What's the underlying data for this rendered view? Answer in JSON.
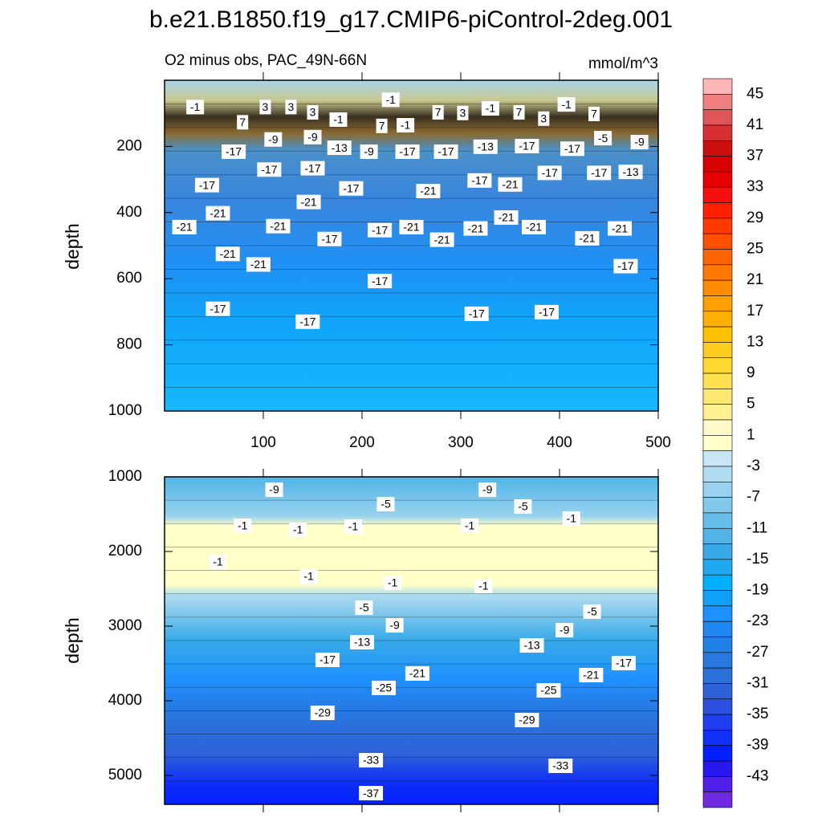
{
  "chart_data": [
    {
      "type": "contour",
      "title": "b.e21.B1850.f19_g17.CMIP6-piControl-2deg.001",
      "subtitle": "O2 minus obs, PAC_49N-66N",
      "units": "mmol/m^3",
      "ylabel": "depth",
      "xlim": [
        0,
        500
      ],
      "xticks": [
        100,
        200,
        300,
        400,
        500
      ],
      "xtick_labels": true,
      "ylim": [
        0,
        1000
      ],
      "yticks": [
        200,
        400,
        600,
        800,
        1000
      ],
      "y_reversed": true,
      "contour_labels": [
        {
          "value": -1,
          "x": 31,
          "y": 81
        },
        {
          "value": 3,
          "x": 102,
          "y": 81
        },
        {
          "value": 3,
          "x": 128,
          "y": 81
        },
        {
          "value": 3,
          "x": 150,
          "y": 97
        },
        {
          "value": 7,
          "x": 79,
          "y": 127
        },
        {
          "value": -1,
          "x": 229,
          "y": 59
        },
        {
          "value": -1,
          "x": 176,
          "y": 119
        },
        {
          "value": 7,
          "x": 220,
          "y": 138
        },
        {
          "value": -1,
          "x": 244,
          "y": 136
        },
        {
          "value": 7,
          "x": 277,
          "y": 97
        },
        {
          "value": 3,
          "x": 302,
          "y": 99
        },
        {
          "value": -1,
          "x": 330,
          "y": 85
        },
        {
          "value": 7,
          "x": 359,
          "y": 97
        },
        {
          "value": 3,
          "x": 384,
          "y": 116
        },
        {
          "value": -1,
          "x": 407,
          "y": 73
        },
        {
          "value": 7,
          "x": 435,
          "y": 102
        },
        {
          "value": -9,
          "x": 110,
          "y": 179
        },
        {
          "value": -9,
          "x": 150,
          "y": 172
        },
        {
          "value": -13,
          "x": 177,
          "y": 204
        },
        {
          "value": -9,
          "x": 207,
          "y": 216
        },
        {
          "value": -17,
          "x": 70,
          "y": 216
        },
        {
          "value": -17,
          "x": 246,
          "y": 216
        },
        {
          "value": -17,
          "x": 285,
          "y": 216
        },
        {
          "value": -13,
          "x": 325,
          "y": 201
        },
        {
          "value": -17,
          "x": 367,
          "y": 199
        },
        {
          "value": -17,
          "x": 413,
          "y": 207
        },
        {
          "value": -5,
          "x": 444,
          "y": 175
        },
        {
          "value": -9,
          "x": 481,
          "y": 187
        },
        {
          "value": -17,
          "x": 150,
          "y": 266
        },
        {
          "value": -17,
          "x": 106,
          "y": 270
        },
        {
          "value": -17,
          "x": 43,
          "y": 317
        },
        {
          "value": -21,
          "x": 146,
          "y": 368
        },
        {
          "value": -17,
          "x": 189,
          "y": 327
        },
        {
          "value": -21,
          "x": 267,
          "y": 335
        },
        {
          "value": -17,
          "x": 319,
          "y": 303
        },
        {
          "value": -21,
          "x": 350,
          "y": 315
        },
        {
          "value": -17,
          "x": 390,
          "y": 280
        },
        {
          "value": -17,
          "x": 440,
          "y": 280
        },
        {
          "value": -13,
          "x": 472,
          "y": 277
        },
        {
          "value": -21,
          "x": 54,
          "y": 402
        },
        {
          "value": -21,
          "x": 20,
          "y": 444
        },
        {
          "value": -21,
          "x": 115,
          "y": 441
        },
        {
          "value": -17,
          "x": 167,
          "y": 480
        },
        {
          "value": -17,
          "x": 218,
          "y": 453
        },
        {
          "value": -21,
          "x": 250,
          "y": 444
        },
        {
          "value": -21,
          "x": 281,
          "y": 482
        },
        {
          "value": -21,
          "x": 315,
          "y": 448
        },
        {
          "value": -21,
          "x": 346,
          "y": 415
        },
        {
          "value": -21,
          "x": 374,
          "y": 444
        },
        {
          "value": -21,
          "x": 428,
          "y": 478
        },
        {
          "value": -21,
          "x": 461,
          "y": 448
        },
        {
          "value": -21,
          "x": 64,
          "y": 525
        },
        {
          "value": -21,
          "x": 95,
          "y": 557
        },
        {
          "value": -17,
          "x": 218,
          "y": 607
        },
        {
          "value": -17,
          "x": 467,
          "y": 562
        },
        {
          "value": -17,
          "x": 54,
          "y": 691
        },
        {
          "value": -17,
          "x": 145,
          "y": 730
        },
        {
          "value": -17,
          "x": 316,
          "y": 706
        },
        {
          "value": -17,
          "x": 387,
          "y": 701
        }
      ]
    },
    {
      "type": "contour",
      "ylabel": "depth",
      "xlim": [
        0,
        500
      ],
      "xticks": [
        100,
        200,
        300,
        400,
        500
      ],
      "xtick_labels": false,
      "ylim": [
        1000,
        5387
      ],
      "yticks": [
        1000,
        2000,
        3000,
        4000,
        5000
      ],
      "y_reversed": true,
      "contour_labels": [
        {
          "value": -9,
          "x": 111,
          "y": 1172
        },
        {
          "value": -9,
          "x": 327,
          "y": 1172
        },
        {
          "value": -5,
          "x": 224,
          "y": 1366
        },
        {
          "value": -5,
          "x": 363,
          "y": 1398
        },
        {
          "value": -1,
          "x": 79,
          "y": 1656
        },
        {
          "value": -1,
          "x": 135,
          "y": 1710
        },
        {
          "value": -1,
          "x": 191,
          "y": 1667
        },
        {
          "value": -1,
          "x": 309,
          "y": 1656
        },
        {
          "value": -1,
          "x": 412,
          "y": 1559
        },
        {
          "value": -1,
          "x": 54,
          "y": 2140
        },
        {
          "value": -1,
          "x": 146,
          "y": 2333
        },
        {
          "value": -1,
          "x": 231,
          "y": 2419
        },
        {
          "value": -1,
          "x": 323,
          "y": 2462
        },
        {
          "value": -5,
          "x": 202,
          "y": 2753
        },
        {
          "value": -5,
          "x": 433,
          "y": 2806
        },
        {
          "value": -9,
          "x": 233,
          "y": 2989
        },
        {
          "value": -9,
          "x": 405,
          "y": 3054
        },
        {
          "value": -13,
          "x": 200,
          "y": 3215
        },
        {
          "value": -13,
          "x": 372,
          "y": 3258
        },
        {
          "value": -17,
          "x": 165,
          "y": 3452
        },
        {
          "value": -17,
          "x": 465,
          "y": 3495
        },
        {
          "value": -21,
          "x": 256,
          "y": 3634
        },
        {
          "value": -21,
          "x": 432,
          "y": 3656
        },
        {
          "value": -25,
          "x": 222,
          "y": 3828
        },
        {
          "value": -25,
          "x": 389,
          "y": 3860
        },
        {
          "value": -29,
          "x": 160,
          "y": 4161
        },
        {
          "value": -29,
          "x": 367,
          "y": 4258
        },
        {
          "value": -33,
          "x": 209,
          "y": 4796
        },
        {
          "value": -33,
          "x": 401,
          "y": 4871
        },
        {
          "value": -37,
          "x": 209,
          "y": 5237
        }
      ]
    },
    {
      "type": "colorbar",
      "lim": [
        -47,
        47
      ],
      "ticks": [
        45,
        41,
        37,
        33,
        29,
        25,
        21,
        17,
        13,
        9,
        5,
        1,
        -3,
        -7,
        -11,
        -15,
        -19,
        -23,
        -27,
        -31,
        -35,
        -39,
        -43
      ],
      "colors": [
        "#ffb6b6",
        "#f08080",
        "#e05555",
        "#d83030",
        "#cc1010",
        "#d80000",
        "#e60000",
        "#f51010",
        "#ff2000",
        "#ff3a00",
        "#ff5000",
        "#ff6400",
        "#ff7800",
        "#ff8c00",
        "#ffa000",
        "#ffb000",
        "#ffc000",
        "#ffcc20",
        "#ffd830",
        "#ffe050",
        "#ffe870",
        "#fff090",
        "#fffac8",
        "#ffffc8",
        "#c8e6f4",
        "#b0dcf0",
        "#98d2ee",
        "#80c8ec",
        "#68beea",
        "#50b4e8",
        "#38aae8",
        "#20a8f0",
        "#00b0ff",
        "#10a0f8",
        "#1e90ff",
        "#1e88f0",
        "#2080e8",
        "#2878e0",
        "#2c70dc",
        "#2e60d8",
        "#2c50e0",
        "#2040f0",
        "#1030f8",
        "#0020ff",
        "#2818f0",
        "#5020e8",
        "#7028e0"
      ]
    }
  ]
}
